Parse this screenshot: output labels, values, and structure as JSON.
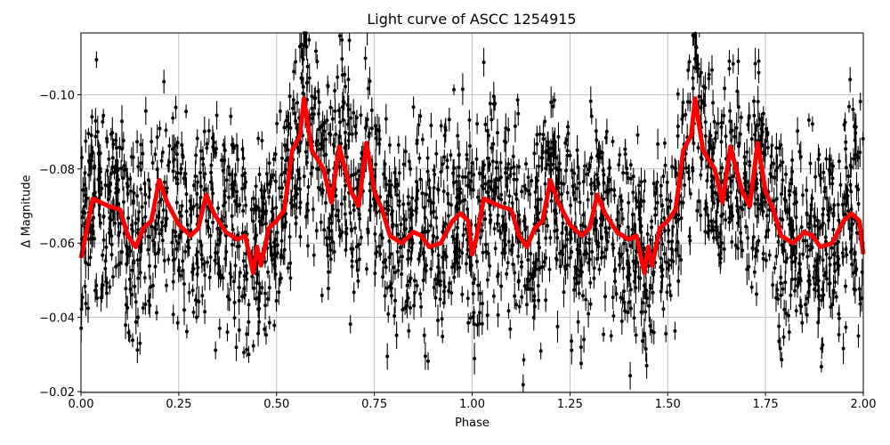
{
  "chart": {
    "title": "Light curve of ASCC 1254915",
    "xlabel": "Phase",
    "ylabel": "Δ Magnitude",
    "xticks": [
      "0.00",
      "0.25",
      "0.50",
      "0.75",
      "1.00",
      "1.25",
      "1.50",
      "1.75",
      "2.00"
    ],
    "yticks": [
      "−0.10",
      "−0.08",
      "−0.06",
      "−0.04",
      "−0.02"
    ],
    "colors": {
      "data": "#000000",
      "model": "#ff0000",
      "grid": "#b0b0b0"
    }
  },
  "chart_data": {
    "type": "scatter",
    "title": "Light curve of ASCC 1254915",
    "xlabel": "Phase",
    "ylabel": "Δ Magnitude",
    "xlim": [
      0.0,
      2.0
    ],
    "ylim": [
      -0.02,
      -0.117
    ],
    "y_inverted": true,
    "grid": true,
    "series": [
      {
        "name": "observations (with error bars)",
        "style": "black points with vertical error bars",
        "description": "dense noisy scatter spanning roughly -0.02 to -0.117 across all phases"
      },
      {
        "name": "binned/smoothed model",
        "style": "thick red line",
        "x": [
          0.0,
          0.01,
          0.03,
          0.05,
          0.07,
          0.1,
          0.12,
          0.14,
          0.16,
          0.18,
          0.2,
          0.22,
          0.25,
          0.28,
          0.3,
          0.32,
          0.34,
          0.37,
          0.4,
          0.42,
          0.44,
          0.45,
          0.46,
          0.48,
          0.5,
          0.52,
          0.54,
          0.56,
          0.57,
          0.59,
          0.62,
          0.64,
          0.66,
          0.69,
          0.71,
          0.73,
          0.75,
          0.77,
          0.79,
          0.82,
          0.85,
          0.87,
          0.89,
          0.92,
          0.95,
          0.97,
          0.99,
          1.0
        ],
        "y": [
          -0.056,
          -0.061,
          -0.072,
          -0.071,
          -0.07,
          -0.069,
          -0.062,
          -0.059,
          -0.064,
          -0.066,
          -0.077,
          -0.071,
          -0.065,
          -0.062,
          -0.064,
          -0.073,
          -0.068,
          -0.063,
          -0.061,
          -0.062,
          -0.052,
          -0.059,
          -0.054,
          -0.064,
          -0.066,
          -0.069,
          -0.085,
          -0.089,
          -0.099,
          -0.085,
          -0.08,
          -0.071,
          -0.086,
          -0.074,
          -0.07,
          -0.087,
          -0.074,
          -0.069,
          -0.062,
          -0.06,
          -0.063,
          -0.062,
          -0.059,
          -0.06,
          -0.066,
          -0.068,
          -0.066,
          -0.057
        ],
        "repeats": "phase 1.00–2.00 repeats phase 0.00–1.00"
      }
    ]
  }
}
